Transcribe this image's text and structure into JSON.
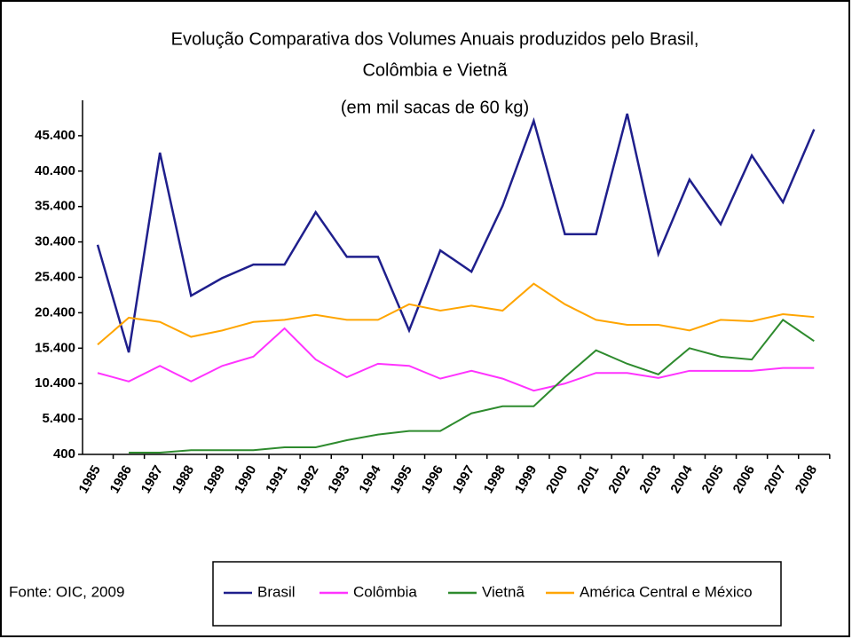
{
  "chart_data": {
    "type": "line",
    "title": [
      "Evolução Comparativa dos Volumes Anuais produzidos pelo Brasil,",
      "Colômbia e Vietnã",
      "(em mil sacas de 60 kg)"
    ],
    "source": "Fonte: OIC, 2009",
    "categories": [
      "1985",
      "1986",
      "1987",
      "1988",
      "1989",
      "1990",
      "1991",
      "1992",
      "1993",
      "1994",
      "1995",
      "1996",
      "1997",
      "1998",
      "1999",
      "2000",
      "2001",
      "2002",
      "2003",
      "2004",
      "2005",
      "2006",
      "2007",
      "2008"
    ],
    "ylim": [
      400,
      50400
    ],
    "yticks": [
      400,
      {
        "value": 5400,
        "label": "5.400"
      },
      {
        "value": 10400,
        "label": "10.400"
      },
      {
        "value": 15400,
        "label": "15.400"
      },
      {
        "value": 20400,
        "label": "20.400"
      },
      {
        "value": 25400,
        "label": "25.400"
      },
      {
        "value": 30400,
        "label": "30.400"
      },
      {
        "value": 35400,
        "label": "35.400"
      },
      {
        "value": 40400,
        "label": "40.400"
      },
      {
        "value": 45400,
        "label": "45.400"
      }
    ],
    "grid": false,
    "series": [
      {
        "name": "Brasil",
        "color": "#1f1f8c",
        "values": [
          30000,
          14800,
          43000,
          22800,
          25300,
          27200,
          27200,
          34600,
          28300,
          28300,
          17900,
          29200,
          26200,
          35500,
          47500,
          31500,
          31500,
          48500,
          28700,
          39200,
          32900,
          42600,
          36000,
          46300
        ]
      },
      {
        "name": "Colômbia",
        "color": "#ff33ff",
        "values": [
          11900,
          10700,
          12900,
          10700,
          12900,
          14200,
          18200,
          13800,
          11300,
          13200,
          12900,
          11100,
          12200,
          11100,
          9400,
          10400,
          11900,
          11900,
          11200,
          12200,
          12200,
          12200,
          12600,
          12600
        ]
      },
      {
        "name": "Vietnã",
        "color": "#2e8b2e",
        "values": [
          null,
          650,
          650,
          1000,
          1000,
          1000,
          1400,
          1400,
          2400,
          3200,
          3700,
          3700,
          6200,
          7200,
          7200,
          11300,
          15100,
          13200,
          11700,
          15400,
          14200,
          13800,
          19400,
          16400
        ]
      },
      {
        "name": "América Central e México",
        "color": "#ffa500",
        "values": [
          15900,
          19700,
          19100,
          17000,
          17900,
          19100,
          19400,
          20100,
          19400,
          19400,
          21600,
          20700,
          21400,
          20700,
          24500,
          21600,
          19400,
          18700,
          18700,
          17900,
          19400,
          19200,
          20200,
          19800
        ]
      }
    ]
  }
}
